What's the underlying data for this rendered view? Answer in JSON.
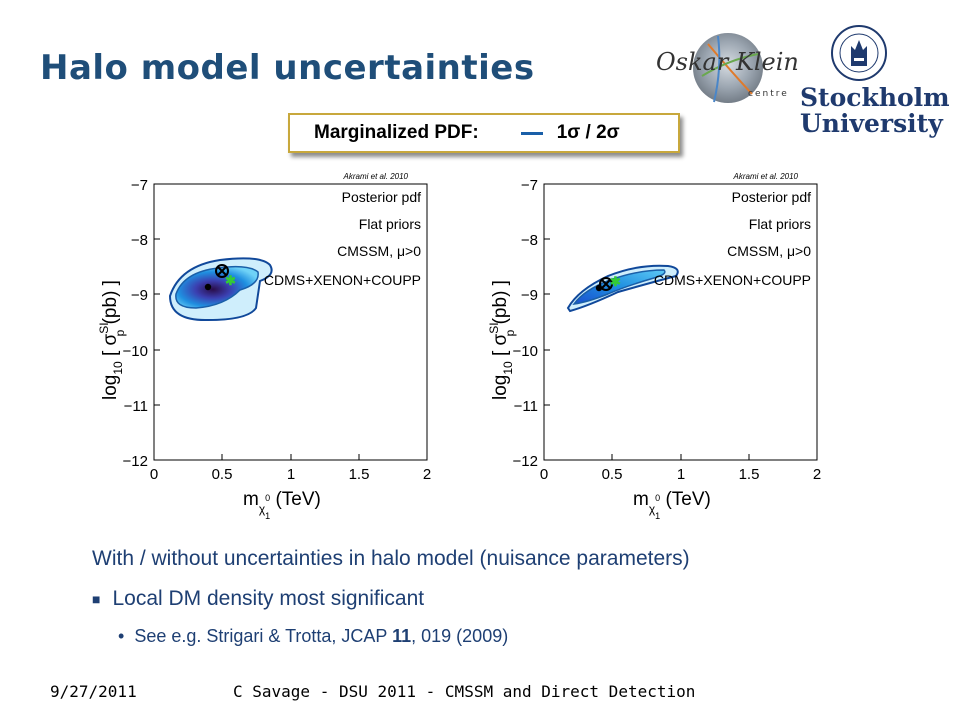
{
  "slide": {
    "title": "Halo model uncertainties",
    "logos": {
      "left_logo_text": "Oskar Klein",
      "left_logo_sub": "centre",
      "right_logo_lines": [
        "Stockholm",
        "University"
      ]
    },
    "legend": {
      "label": "Marginalized PDF:",
      "line_color": "#1a5fa8",
      "sigma_text": "1σ / 2σ"
    },
    "plots": [
      {
        "citation": "Akrami et al. 2010",
        "annotations": [
          "Posterior pdf",
          "Flat priors",
          "CMSSM, μ>0",
          "CDMS+XENON+COUPP"
        ],
        "y_ticks": [
          "−7",
          "−8",
          "−9",
          "−10",
          "−11",
          "−12"
        ],
        "x_ticks": [
          "0",
          "0.5",
          "1",
          "1.5",
          "2"
        ]
      },
      {
        "citation": "Akrami et al. 2010",
        "annotations": [
          "Posterior pdf",
          "Flat priors",
          "CMSSM, μ>0",
          "CDMS+XENON+COUPP"
        ],
        "y_ticks": [
          "−7",
          "−8",
          "−9",
          "−10",
          "−11",
          "−12"
        ],
        "x_ticks": [
          "0",
          "0.5",
          "1",
          "1.5",
          "2"
        ]
      }
    ],
    "bullets": {
      "main": "With / without uncertainties in halo model (nuisance parameters)",
      "level1": "Local DM density most significant",
      "level2_prefix": "See e.g. Strigari & Trotta, JCAP ",
      "level2_bold": "11",
      "level2_suffix": ", 019 (2009)"
    },
    "footer": {
      "date": "9/27/2011",
      "text": "C Savage - DSU 2011 - CMSSM and Direct Detection"
    }
  }
}
